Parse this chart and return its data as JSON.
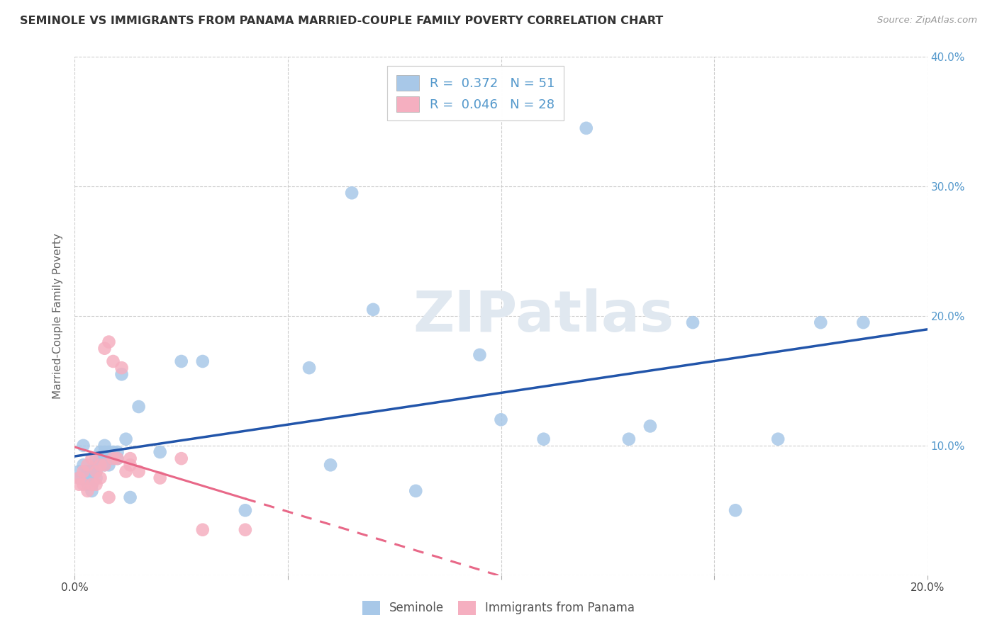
{
  "title": "SEMINOLE VS IMMIGRANTS FROM PANAMA MARRIED-COUPLE FAMILY POVERTY CORRELATION CHART",
  "source": "Source: ZipAtlas.com",
  "ylabel": "Married-Couple Family Poverty",
  "xlim": [
    0.0,
    0.2
  ],
  "ylim": [
    0.0,
    0.4
  ],
  "xticks": [
    0.0,
    0.05,
    0.1,
    0.15,
    0.2
  ],
  "yticks": [
    0.0,
    0.1,
    0.2,
    0.3,
    0.4
  ],
  "seminole_R": 0.372,
  "seminole_N": 51,
  "panama_R": 0.046,
  "panama_N": 28,
  "seminole_color": "#a8c8e8",
  "panama_color": "#f5afc0",
  "seminole_line_color": "#2255aa",
  "panama_line_color": "#e86888",
  "bg_color": "#ffffff",
  "grid_color": "#cccccc",
  "watermark": "ZIPatlas",
  "tick_color": "#5599cc",
  "seminole_x": [
    0.001,
    0.001,
    0.002,
    0.002,
    0.003,
    0.003,
    0.003,
    0.004,
    0.004,
    0.004,
    0.005,
    0.005,
    0.005,
    0.005,
    0.006,
    0.006,
    0.006,
    0.007,
    0.007,
    0.007,
    0.008,
    0.008,
    0.008,
    0.009,
    0.009,
    0.01,
    0.01,
    0.011,
    0.012,
    0.013,
    0.015,
    0.02,
    0.025,
    0.03,
    0.04,
    0.055,
    0.06,
    0.065,
    0.07,
    0.08,
    0.095,
    0.1,
    0.11,
    0.12,
    0.13,
    0.135,
    0.145,
    0.155,
    0.165,
    0.175,
    0.185
  ],
  "seminole_y": [
    0.08,
    0.075,
    0.085,
    0.1,
    0.08,
    0.075,
    0.07,
    0.08,
    0.07,
    0.065,
    0.09,
    0.085,
    0.08,
    0.075,
    0.095,
    0.09,
    0.085,
    0.1,
    0.095,
    0.085,
    0.095,
    0.09,
    0.085,
    0.095,
    0.09,
    0.095,
    0.09,
    0.155,
    0.105,
    0.06,
    0.13,
    0.095,
    0.165,
    0.165,
    0.05,
    0.16,
    0.085,
    0.295,
    0.205,
    0.065,
    0.17,
    0.12,
    0.105,
    0.345,
    0.105,
    0.115,
    0.195,
    0.05,
    0.105,
    0.195,
    0.195
  ],
  "panama_x": [
    0.001,
    0.001,
    0.002,
    0.002,
    0.003,
    0.003,
    0.004,
    0.004,
    0.005,
    0.005,
    0.006,
    0.006,
    0.007,
    0.007,
    0.008,
    0.008,
    0.009,
    0.009,
    0.01,
    0.011,
    0.012,
    0.013,
    0.013,
    0.015,
    0.02,
    0.025,
    0.03,
    0.04
  ],
  "panama_y": [
    0.075,
    0.07,
    0.08,
    0.07,
    0.085,
    0.065,
    0.09,
    0.07,
    0.08,
    0.07,
    0.085,
    0.075,
    0.175,
    0.085,
    0.18,
    0.06,
    0.165,
    0.09,
    0.09,
    0.16,
    0.08,
    0.09,
    0.085,
    0.08,
    0.075,
    0.09,
    0.035,
    0.035
  ]
}
